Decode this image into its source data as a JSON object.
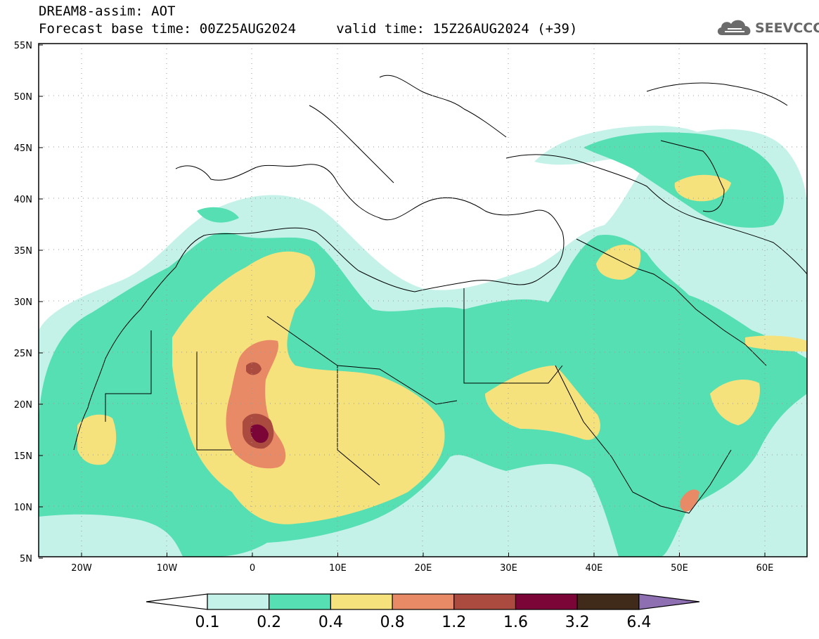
{
  "header": {
    "title_line1": "DREAM8-assim: AOT",
    "title_line2": "Forecast base time: 00Z25AUG2024     valid time: 15Z26AUG2024 (+39)"
  },
  "logo": {
    "text": "SEEVCCC",
    "icon": "cloud-icon"
  },
  "map": {
    "lat_labels": [
      "55N",
      "50N",
      "45N",
      "40N",
      "35N",
      "30N",
      "25N",
      "20N",
      "15N",
      "10N",
      "5N"
    ],
    "lon_labels": [
      "20W",
      "10W",
      "0",
      "10E",
      "20E",
      "30E",
      "40E",
      "50E",
      "60E"
    ]
  },
  "legend": {
    "labels": [
      "0.1",
      "0.2",
      "0.4",
      "0.8",
      "1.2",
      "1.6",
      "3.2",
      "6.4"
    ],
    "colors": [
      "#ffffff",
      "#c5f2e8",
      "#55dfb2",
      "#f6e27c",
      "#e98a66",
      "#ab4b3f",
      "#7b0537",
      "#402a19",
      "#8d6fb2"
    ]
  }
}
